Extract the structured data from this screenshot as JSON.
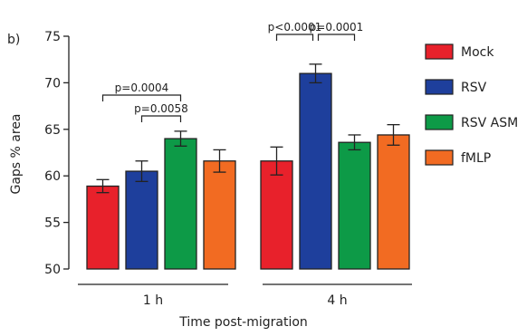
{
  "panel_label": "b)",
  "chart_data": {
    "type": "bar",
    "title": "",
    "xlabel": "Time post-migration",
    "ylabel": "Gaps % area",
    "ylim": [
      50,
      75
    ],
    "yticks": [
      50,
      55,
      60,
      65,
      70,
      75
    ],
    "categories": [
      "1 h",
      "4 h"
    ],
    "series": [
      {
        "name": "Mock",
        "color": "#e8212b",
        "values": [
          58.9,
          61.6
        ],
        "errors": [
          0.7,
          1.5
        ]
      },
      {
        "name": "RSV",
        "color": "#1e3f9c",
        "values": [
          60.5,
          71.0
        ],
        "errors": [
          1.1,
          1.0
        ]
      },
      {
        "name": "RSV ASM",
        "color": "#0d9a47",
        "values": [
          64.0,
          63.6
        ],
        "errors": [
          0.8,
          0.8
        ]
      },
      {
        "name": "fMLP",
        "color": "#f26b22",
        "values": [
          61.6,
          64.4
        ],
        "errors": [
          1.2,
          1.1
        ]
      }
    ],
    "annotations": [
      {
        "text": "p=0.0004",
        "group": 0,
        "from": 0,
        "to": 2,
        "level": 2
      },
      {
        "text": "p=0.0058",
        "group": 0,
        "from": 1,
        "to": 2,
        "level": 1
      },
      {
        "text": "p<0.0001",
        "group": 1,
        "from": 0,
        "to": 1,
        "level": 3
      },
      {
        "text": "p=0.0001",
        "group": 1,
        "from": 1,
        "to": 2,
        "level": 3
      }
    ],
    "legend_position": "right",
    "grid": false
  }
}
